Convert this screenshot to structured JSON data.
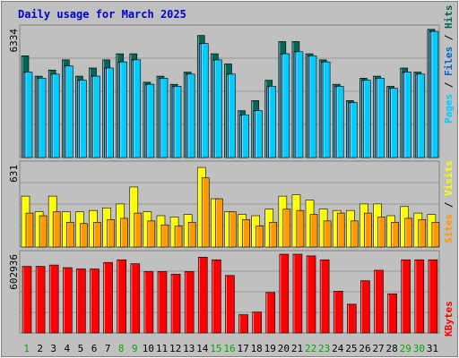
{
  "title": "Daily usage for March 2025",
  "chart_data": [
    {
      "type": "bar",
      "ymax_label": "6334",
      "ymax": 6334,
      "series": [
        {
          "name": "Pages",
          "color": "#00ccff",
          "values": [
            4200,
            3900,
            4100,
            4500,
            3800,
            4000,
            4400,
            4700,
            4800,
            3600,
            3900,
            3500,
            4100,
            5600,
            4800,
            4100,
            2100,
            2300,
            3500,
            5100,
            5200,
            5000,
            4700,
            3500,
            2700,
            3800,
            3900,
            3400,
            4200,
            4100,
            6200
          ]
        },
        {
          "name": "Files",
          "color": "#0066cc",
          "values": [
            4200,
            3900,
            4100,
            4500,
            3800,
            4000,
            4400,
            4700,
            4800,
            3600,
            3900,
            3500,
            4100,
            5600,
            4800,
            4100,
            2100,
            2300,
            3500,
            5100,
            5200,
            5000,
            4700,
            3500,
            2700,
            3800,
            3900,
            3400,
            4200,
            4100,
            6200
          ]
        },
        {
          "name": "Hits",
          "color": "#006655",
          "values": [
            5000,
            4000,
            4300,
            4800,
            4000,
            4400,
            4800,
            5100,
            5100,
            3700,
            4000,
            3600,
            4200,
            6000,
            5100,
            4600,
            2300,
            2800,
            3800,
            5700,
            5700,
            5100,
            4800,
            3600,
            2800,
            3900,
            4000,
            3500,
            4400,
            4200,
            6300
          ]
        }
      ]
    },
    {
      "type": "bar",
      "ymax_label": "631",
      "ymax": 631,
      "series": [
        {
          "name": "Sites",
          "color": "#ff9900",
          "values": [
            260,
            240,
            270,
            190,
            180,
            190,
            210,
            220,
            260,
            200,
            170,
            160,
            190,
            530,
            370,
            270,
            210,
            160,
            190,
            290,
            280,
            250,
            200,
            260,
            200,
            260,
            230,
            190,
            220,
            210,
            190
          ]
        },
        {
          "name": "Visits",
          "color": "#ffff00",
          "values": [
            390,
            270,
            390,
            270,
            270,
            280,
            300,
            330,
            460,
            270,
            240,
            230,
            250,
            610,
            370,
            270,
            250,
            240,
            290,
            390,
            400,
            360,
            290,
            280,
            280,
            330,
            330,
            240,
            310,
            260,
            250
          ]
        }
      ]
    },
    {
      "type": "bar",
      "ymax_label": "602936",
      "ymax": 602936,
      "series": [
        {
          "name": "KBytes",
          "color": "#ff0000",
          "values": [
            510000,
            510000,
            520000,
            500000,
            490000,
            490000,
            540000,
            560000,
            530000,
            470000,
            470000,
            450000,
            470000,
            580000,
            560000,
            440000,
            140000,
            160000,
            310000,
            602936,
            602936,
            590000,
            560000,
            320000,
            220000,
            400000,
            480000,
            300000,
            560000,
            560000,
            560000
          ]
        }
      ]
    }
  ],
  "legend_top": [
    "Pages",
    " / ",
    "Files",
    " / ",
    "Hits"
  ],
  "legend_mid": [
    "Sites",
    " / ",
    "Visits"
  ],
  "legend_bot": [
    "KBytes"
  ],
  "days": [
    "1",
    "2",
    "3",
    "4",
    "5",
    "6",
    "7",
    "8",
    "9",
    "10",
    "11",
    "12",
    "13",
    "14",
    "15",
    "16",
    "17",
    "18",
    "19",
    "20",
    "21",
    "22",
    "23",
    "24",
    "25",
    "26",
    "27",
    "28",
    "29",
    "30",
    "31"
  ],
  "weekend_days": [
    1,
    8,
    9,
    15,
    16,
    22,
    23,
    29,
    30
  ],
  "colors": {
    "weekday_label": "#000000",
    "weekend_label": "#00aa00",
    "title": "#0000cc",
    "grid": "#999999"
  }
}
